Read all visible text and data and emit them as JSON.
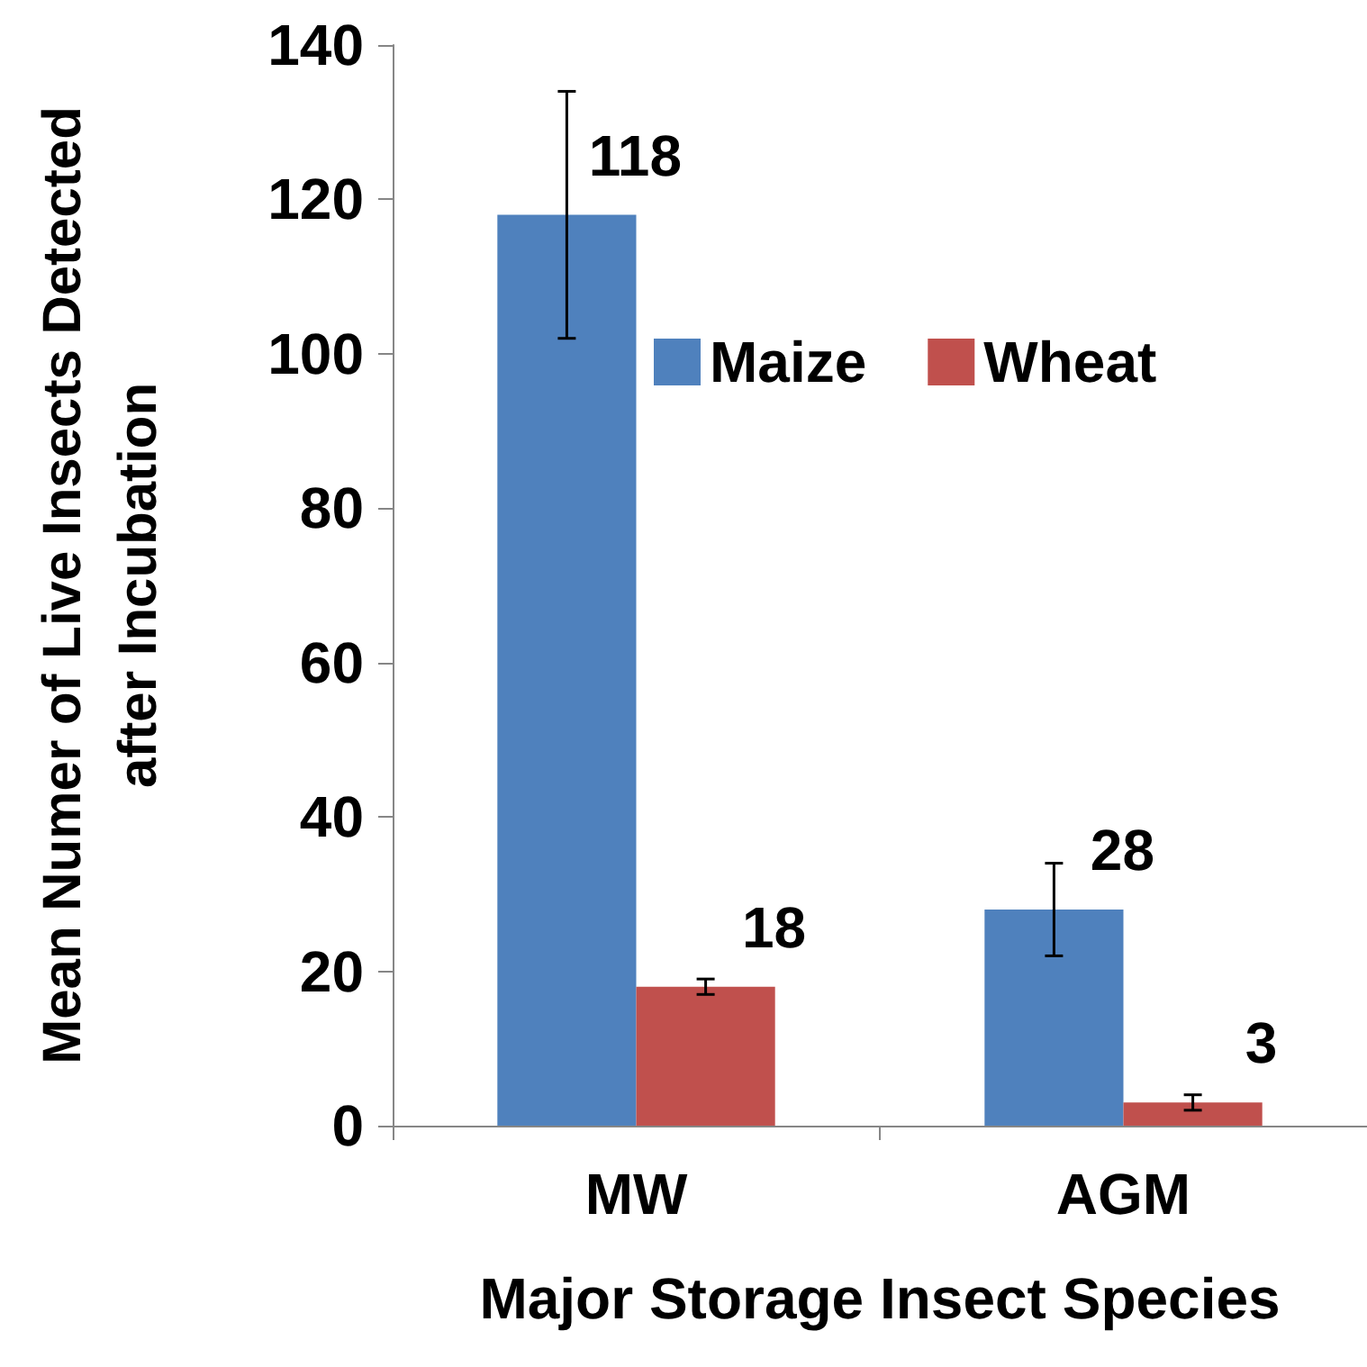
{
  "chart_data": {
    "type": "bar",
    "xlabel": "Major Storage Insect Species",
    "ylabel": "Mean Numer of Live Insects Detected after Incubation",
    "categories": [
      "MW",
      "AGM"
    ],
    "series": [
      {
        "name": "Maize",
        "color": "#4f81bd",
        "values": [
          118,
          28
        ],
        "errors": [
          16,
          6
        ]
      },
      {
        "name": "Wheat",
        "color": "#c0504d",
        "values": [
          18,
          3
        ],
        "errors": [
          1,
          1
        ]
      }
    ],
    "ylim": [
      0,
      140
    ],
    "yticks": [
      0,
      20,
      40,
      60,
      80,
      100,
      120,
      140
    ],
    "grid": false,
    "legend": "top right",
    "data_labels": true
  }
}
